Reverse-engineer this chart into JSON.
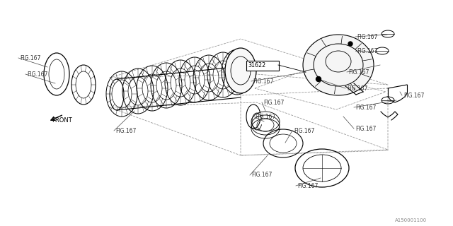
{
  "bg_color": "#ffffff",
  "line_color": "#000000",
  "gray_color": "#888888",
  "fig_label": "FIG.167",
  "part_31622": "31622",
  "catalog_id": "A150001100",
  "front_label": "FRONT"
}
